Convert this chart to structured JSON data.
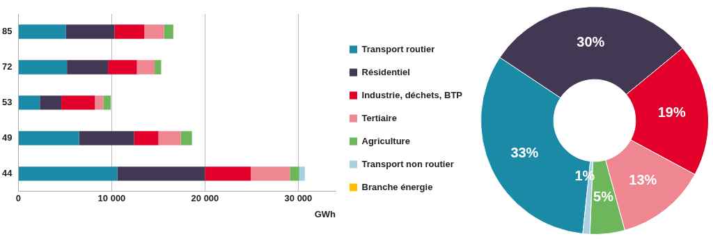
{
  "chart_data": [
    {
      "type": "bar",
      "orientation": "horizontal",
      "stacked": true,
      "categories": [
        "85",
        "72",
        "53",
        "49",
        "44"
      ],
      "xlabel": "GWh",
      "xlim": [
        0,
        34000
      ],
      "xticks": [
        {
          "value": 0,
          "label": "0"
        },
        {
          "value": 10000,
          "label": "10 000"
        },
        {
          "value": 20000,
          "label": "20 000"
        },
        {
          "value": 30000,
          "label": "30 000"
        }
      ],
      "grid": "x",
      "legend": "right",
      "series": [
        {
          "name": "Transport routier",
          "color": "#1a8aa6",
          "values": [
            5100,
            5200,
            2300,
            6500,
            10600
          ]
        },
        {
          "name": "Résidentiel",
          "color": "#433853",
          "values": [
            5200,
            4400,
            2300,
            5900,
            9400
          ]
        },
        {
          "name": "Industrie, déchets, BTP",
          "color": "#e2002a",
          "values": [
            3200,
            3100,
            3600,
            2600,
            4900
          ]
        },
        {
          "name": "Tertiaire",
          "color": "#ee8791",
          "values": [
            2100,
            1900,
            900,
            2400,
            4200
          ]
        },
        {
          "name": "Agriculture",
          "color": "#6db65b",
          "values": [
            1000,
            700,
            800,
            1200,
            1000
          ]
        },
        {
          "name": "Transport non routier",
          "color": "#a8d0e2",
          "values": [
            null,
            null,
            null,
            null,
            600
          ]
        },
        {
          "name": "Branche énergie",
          "color": "#ffc000",
          "values": [
            null,
            null,
            null,
            null,
            null
          ]
        }
      ]
    },
    {
      "type": "donut",
      "categories": [
        null,
        null,
        null,
        null,
        null,
        null
      ],
      "values": [
        33,
        30,
        19,
        13,
        5,
        1
      ],
      "value_labels": [
        "33%",
        "30%",
        "19%",
        "13%",
        "5%",
        "1%"
      ],
      "colors": [
        "#1a8aa6",
        "#433853",
        "#e2002a",
        "#ee8791",
        "#6db65b",
        "#a8d0e2"
      ]
    }
  ]
}
